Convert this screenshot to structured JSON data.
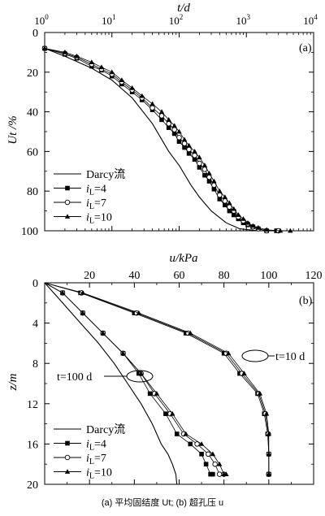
{
  "caption": "(a) 平均固结度 Ut; (b) 超孔压 u",
  "chart_data": [
    {
      "type": "scatter",
      "panel_label": "(a)",
      "xlabel": "t/d",
      "ylabel": "Ut /%",
      "x_scale": "log",
      "xlim": [
        1,
        10000
      ],
      "ylim": [
        0,
        100
      ],
      "y_inverted": true,
      "x_tick_labels": [
        "10^0",
        "10^1",
        "10^2",
        "10^3",
        "10^4"
      ],
      "y_tick_labels": [
        "0",
        "20",
        "40",
        "60",
        "80",
        "100"
      ],
      "legend_placement": "bottom-left",
      "series": [
        {
          "name": "Darcy流",
          "style": "line",
          "x": [
            1,
            2,
            5,
            10,
            20,
            40,
            70,
            100,
            150,
            200,
            300,
            500,
            800,
            1500
          ],
          "y": [
            8,
            12,
            18,
            24,
            33,
            46,
            60,
            67,
            77,
            83,
            90,
            96,
            99,
            100
          ]
        },
        {
          "name": "iL=4",
          "style": "line-square",
          "x": [
            1,
            2,
            3,
            5,
            7,
            10,
            14,
            20,
            28,
            40,
            55,
            70,
            85,
            100,
            120,
            140,
            170,
            200,
            240,
            280,
            330,
            400,
            480,
            560,
            650,
            760,
            900,
            1050,
            1250,
            1500,
            2000,
            2800
          ],
          "y": [
            8,
            11,
            13,
            17,
            19,
            22,
            26,
            30,
            34,
            39,
            44,
            48,
            51,
            55,
            58,
            61,
            64,
            68,
            72,
            75,
            79,
            84,
            87,
            90,
            92,
            94,
            96,
            97,
            98,
            99,
            100,
            100
          ]
        },
        {
          "name": "iL=7",
          "style": "line-circle",
          "x": [
            1,
            2,
            3,
            5,
            7,
            10,
            14,
            20,
            28,
            40,
            55,
            70,
            85,
            100,
            120,
            140,
            170,
            200,
            240,
            280,
            330,
            400,
            480,
            560,
            650,
            760,
            900,
            1050,
            1250,
            1500,
            2000,
            3000
          ],
          "y": [
            8,
            10.5,
            12.5,
            16,
            18.5,
            21,
            25,
            29,
            33,
            38,
            42,
            46,
            49,
            53,
            56,
            59,
            62,
            66,
            69,
            73,
            77,
            82,
            85,
            88,
            90,
            93,
            95,
            96.5,
            98,
            99,
            100,
            100
          ]
        },
        {
          "name": "iL=10",
          "style": "line-triangle",
          "x": [
            1,
            2,
            3,
            5,
            7,
            10,
            14,
            20,
            28,
            40,
            55,
            70,
            85,
            100,
            120,
            140,
            170,
            200,
            240,
            280,
            330,
            400,
            480,
            560,
            650,
            760,
            900,
            1050,
            1250,
            1500,
            2000,
            3200,
            4500
          ],
          "y": [
            8,
            10,
            12,
            15,
            17.5,
            20,
            24,
            28,
            32,
            36,
            40,
            44,
            47,
            50,
            54,
            57,
            60,
            63,
            67,
            71,
            75,
            80,
            83,
            86,
            89,
            92,
            94,
            96,
            97.5,
            98.5,
            99.5,
            100,
            100
          ]
        }
      ]
    },
    {
      "type": "scatter",
      "panel_label": "(b)",
      "xlabel": "u/kPa",
      "ylabel": "z/m",
      "xlim": [
        0,
        120
      ],
      "ylim": [
        0,
        20
      ],
      "y_inverted": true,
      "x_tick_labels": [
        "0",
        "20",
        "40",
        "60",
        "80",
        "100",
        "120"
      ],
      "y_tick_labels": [
        "0",
        "4",
        "8",
        "12",
        "16",
        "20"
      ],
      "legend_placement": "bottom-left",
      "annotations": [
        "t=10 d",
        "t=100 d"
      ],
      "series": [
        {
          "name": "Darcy流",
          "style": "line",
          "x": [
            0,
            8,
            16,
            24,
            31,
            37,
            43,
            48,
            52,
            55,
            57,
            58.5,
            59
          ],
          "y": [
            0,
            2,
            4,
            6,
            8,
            10,
            12,
            14,
            16,
            17,
            18,
            19,
            20
          ]
        },
        {
          "name": "iL=4",
          "style": "line-square",
          "x": [
            0,
            8,
            17,
            26,
            35,
            42,
            47,
            54,
            59,
            65,
            70,
            72,
            74,
            75
          ],
          "y": [
            0,
            1,
            3,
            5,
            7,
            9,
            11,
            13,
            15,
            16,
            17,
            18,
            19,
            19
          ]
        },
        {
          "name": "iL=7",
          "style": "line-circle",
          "x": [
            0,
            8,
            17,
            26,
            35,
            43,
            49,
            56,
            62,
            68,
            73,
            76,
            78,
            80
          ],
          "y": [
            0,
            1,
            3,
            5,
            7,
            9,
            11,
            13,
            15,
            16,
            17,
            18,
            19,
            19
          ]
        },
        {
          "name": "iL=10",
          "style": "line-triangle",
          "x": [
            0,
            8,
            17,
            26,
            35,
            43,
            50,
            57,
            63,
            70,
            75,
            78,
            80,
            81
          ],
          "y": [
            0,
            1,
            3,
            5,
            7,
            9,
            11,
            13,
            15,
            16,
            17,
            18,
            19,
            19
          ]
        },
        {
          "name": "t=10 d, iL=4",
          "style": "line-square",
          "legend": false,
          "x": [
            0,
            16,
            40,
            63,
            80,
            87,
            95,
            98,
            99.5,
            100,
            100,
            100
          ],
          "y": [
            0,
            1,
            3,
            5,
            7,
            9,
            11,
            13,
            15,
            17,
            19,
            19
          ]
        },
        {
          "name": "t=10 d, iL=7",
          "style": "line-circle",
          "legend": false,
          "x": [
            0,
            16.5,
            41,
            64,
            81,
            88,
            95.5,
            98.5,
            99.8,
            100,
            100,
            100
          ],
          "y": [
            0,
            1,
            3,
            5,
            7,
            9,
            11,
            13,
            15,
            17,
            19,
            19
          ]
        },
        {
          "name": "t=10 d, iL=10",
          "style": "line-triangle",
          "legend": false,
          "x": [
            0,
            17,
            42,
            65,
            82,
            89,
            96,
            99,
            100,
            100,
            100,
            100
          ],
          "y": [
            0,
            1,
            3,
            5,
            7,
            9,
            11,
            13,
            15,
            17,
            19,
            19
          ]
        }
      ]
    }
  ]
}
